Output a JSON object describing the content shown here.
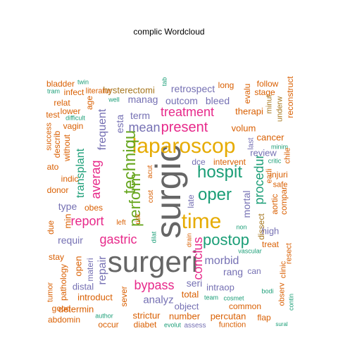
{
  "title": "complic  Wordcloud",
  "palette": {
    "orange": "#d95f02",
    "teal": "#1b9e77",
    "purple": "#7570b3",
    "pink": "#e7298a",
    "green": "#66a61e",
    "gold": "#e6ab02",
    "brown": "#a6761d",
    "gray": "#666666"
  },
  "words": [
    {
      "text": "surgeri",
      "color": "gray"
    },
    {
      "text": "surgic",
      "color": "gray",
      "vertical": true
    },
    {
      "text": "laparoscop",
      "color": "gold"
    },
    {
      "text": "time",
      "color": "gold"
    },
    {
      "text": "techniqu",
      "color": "green",
      "vertical": true
    },
    {
      "text": "hospit",
      "color": "teal"
    },
    {
      "text": "oper",
      "color": "teal"
    },
    {
      "text": "postop",
      "color": "teal"
    },
    {
      "text": "perform",
      "color": "green",
      "vertical": true
    },
    {
      "text": "present",
      "color": "pink"
    },
    {
      "text": "treatment",
      "color": "pink"
    },
    {
      "text": "gastric",
      "color": "pink"
    },
    {
      "text": "bypass",
      "color": "pink"
    },
    {
      "text": "report",
      "color": "pink"
    },
    {
      "text": "conclus",
      "color": "pink",
      "vertical": true
    },
    {
      "text": "averag",
      "color": "pink",
      "vertical": true
    },
    {
      "text": "procedur",
      "color": "teal",
      "vertical": true
    },
    {
      "text": "transplant",
      "color": "teal",
      "vertical": true
    },
    {
      "text": "mean",
      "color": "purple"
    },
    {
      "text": "morbid",
      "color": "purple"
    },
    {
      "text": "frequent",
      "color": "purple",
      "vertical": true
    },
    {
      "text": "esta",
      "color": "purple",
      "vertical": true
    },
    {
      "text": "term",
      "color": "purple"
    },
    {
      "text": "manag",
      "color": "purple"
    },
    {
      "text": "outcom",
      "color": "purple"
    },
    {
      "text": "bleed",
      "color": "purple"
    },
    {
      "text": "retrospect",
      "color": "purple"
    },
    {
      "text": "hysterectomi",
      "color": "brown"
    },
    {
      "text": "long",
      "color": "orange"
    },
    {
      "text": "follow",
      "color": "orange"
    },
    {
      "text": "evalu",
      "color": "orange",
      "vertical": true
    },
    {
      "text": "stage",
      "color": "orange"
    },
    {
      "text": "reconstruct",
      "color": "orange",
      "vertical": true
    },
    {
      "text": "minut",
      "color": "brown",
      "vertical": true
    },
    {
      "text": "underw",
      "color": "brown",
      "vertical": true
    },
    {
      "text": "therapi",
      "color": "orange"
    },
    {
      "text": "volum",
      "color": "orange"
    },
    {
      "text": "cancer",
      "color": "orange"
    },
    {
      "text": "last",
      "color": "purple",
      "vertical": true
    },
    {
      "text": "minim",
      "color": "teal"
    },
    {
      "text": "chile",
      "color": "orange",
      "vertical": true
    },
    {
      "text": "review",
      "color": "purple"
    },
    {
      "text": "critic",
      "color": "teal"
    },
    {
      "text": "intervent",
      "color": "orange"
    },
    {
      "text": "dce",
      "color": "purple"
    },
    {
      "text": "earli",
      "color": "orange",
      "vertical": true
    },
    {
      "text": "injuri",
      "color": "orange"
    },
    {
      "text": "safe",
      "color": "orange"
    },
    {
      "text": "compar",
      "color": "orange",
      "vertical": true
    },
    {
      "text": "aortic",
      "color": "orange",
      "vertical": true
    },
    {
      "text": "mortal",
      "color": "purple",
      "vertical": true
    },
    {
      "text": "dissect",
      "color": "brown",
      "vertical": true
    },
    {
      "text": "high",
      "color": "purple"
    },
    {
      "text": "treat",
      "color": "orange"
    },
    {
      "text": "rang",
      "color": "purple"
    },
    {
      "text": "can",
      "color": "purple"
    },
    {
      "text": "resect",
      "color": "orange",
      "vertical": true
    },
    {
      "text": "clinic",
      "color": "orange",
      "vertical": true
    },
    {
      "text": "vascular",
      "color": "teal"
    },
    {
      "text": "bodi",
      "color": "teal"
    },
    {
      "text": "observ",
      "color": "orange",
      "vertical": true
    },
    {
      "text": "contin",
      "color": "teal",
      "vertical": true
    },
    {
      "text": "seri",
      "color": "purple"
    },
    {
      "text": "intraop",
      "color": "purple"
    },
    {
      "text": "team",
      "color": "teal"
    },
    {
      "text": "cosmet",
      "color": "teal"
    },
    {
      "text": "common",
      "color": "orange"
    },
    {
      "text": "flap",
      "color": "orange"
    },
    {
      "text": "sural",
      "color": "teal"
    },
    {
      "text": "percutan",
      "color": "orange"
    },
    {
      "text": "function",
      "color": "orange"
    },
    {
      "text": "number",
      "color": "orange"
    },
    {
      "text": "assess",
      "color": "purple"
    },
    {
      "text": "evolut",
      "color": "teal"
    },
    {
      "text": "diabet",
      "color": "orange"
    },
    {
      "text": "strictur",
      "color": "orange"
    },
    {
      "text": "object",
      "color": "purple"
    },
    {
      "text": "total",
      "color": "orange"
    },
    {
      "text": "analyz",
      "color": "purple"
    },
    {
      "text": "sever",
      "color": "orange",
      "vertical": true
    },
    {
      "text": "occur",
      "color": "orange"
    },
    {
      "text": "author",
      "color": "teal"
    },
    {
      "text": "determin",
      "color": "orange"
    },
    {
      "text": "introduct",
      "color": "orange"
    },
    {
      "text": "distal",
      "color": "purple"
    },
    {
      "text": "materi",
      "color": "purple",
      "vertical": true
    },
    {
      "text": "repair",
      "color": "purple",
      "vertical": true
    },
    {
      "text": "open",
      "color": "orange",
      "vertical": true
    },
    {
      "text": "stay",
      "color": "orange"
    },
    {
      "text": "pathology",
      "color": "orange",
      "vertical": true
    },
    {
      "text": "tumor",
      "color": "orange",
      "vertical": true
    },
    {
      "text": "good",
      "color": "orange"
    },
    {
      "text": "abdomin",
      "color": "orange"
    },
    {
      "text": "requir",
      "color": "purple"
    },
    {
      "text": "due",
      "color": "orange",
      "vertical": true
    },
    {
      "text": "min",
      "color": "orange",
      "vertical": true
    },
    {
      "text": "type",
      "color": "purple"
    },
    {
      "text": "obes",
      "color": "orange"
    },
    {
      "text": "left",
      "color": "orange"
    },
    {
      "text": "risk",
      "color": "orange",
      "vertical": true
    },
    {
      "text": "cost",
      "color": "orange",
      "vertical": true
    },
    {
      "text": "acut",
      "color": "orange",
      "vertical": true
    },
    {
      "text": "late",
      "color": "purple",
      "vertical": true
    },
    {
      "text": "dilat",
      "color": "teal",
      "vertical": true
    },
    {
      "text": "drain",
      "color": "orange",
      "vertical": true
    },
    {
      "text": "non",
      "color": "teal"
    },
    {
      "text": "donor",
      "color": "orange"
    },
    {
      "text": "ato",
      "color": "orange"
    },
    {
      "text": "indic",
      "color": "orange"
    },
    {
      "text": "without",
      "color": "orange",
      "vertical": true
    },
    {
      "text": "describ",
      "color": "orange",
      "vertical": true
    },
    {
      "text": "success",
      "color": "orange",
      "vertical": true
    },
    {
      "text": "test",
      "color": "orange"
    },
    {
      "text": "lower",
      "color": "orange"
    },
    {
      "text": "vagin",
      "color": "orange"
    },
    {
      "text": "difficult",
      "color": "teal"
    },
    {
      "text": "relat",
      "color": "orange"
    },
    {
      "text": "age",
      "color": "orange",
      "vertical": true
    },
    {
      "text": "well",
      "color": "teal"
    },
    {
      "text": "infect",
      "color": "orange"
    },
    {
      "text": "literatur",
      "color": "orange"
    },
    {
      "text": "tram",
      "color": "teal"
    },
    {
      "text": "bladder",
      "color": "orange"
    },
    {
      "text": "twin",
      "color": "teal"
    },
    {
      "text": "tab",
      "color": "teal",
      "vertical": true
    }
  ]
}
